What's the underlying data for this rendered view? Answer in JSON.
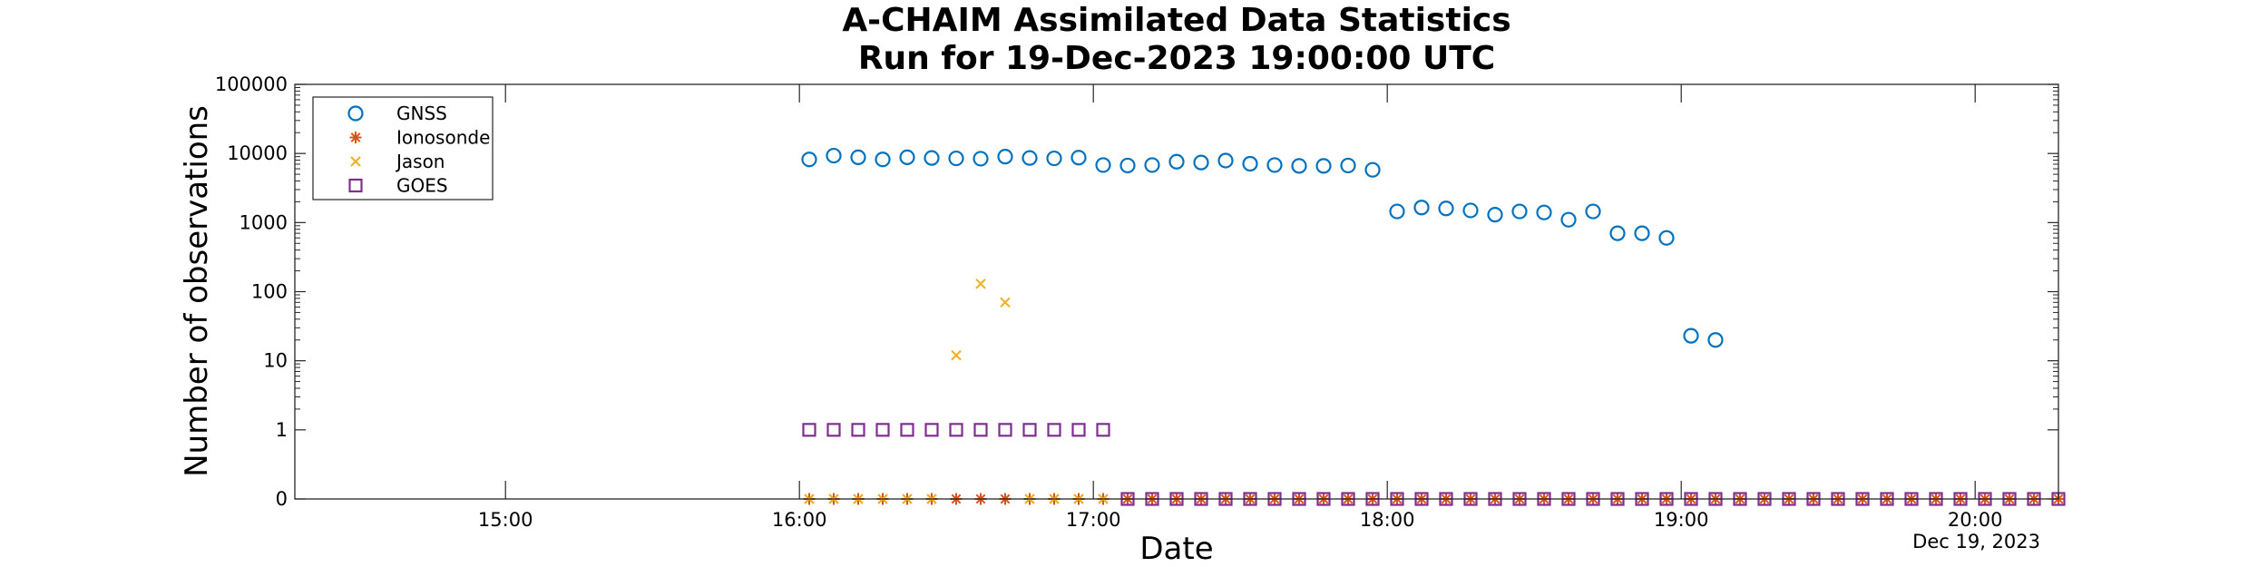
{
  "chart_data": {
    "type": "scatter",
    "title": "A-CHAIM Assimilated Data Statistics",
    "subtitle": "Run for 19-Dec-2023 19:00:00 UTC",
    "xlabel": "Date",
    "ylabel": "Number of observations",
    "x_ticks": [
      "15:00",
      "16:00",
      "17:00",
      "18:00",
      "19:00",
      "20:00"
    ],
    "y_ticks": [
      "0",
      "1",
      "10",
      "100",
      "1000",
      "10000",
      "100000"
    ],
    "x_range": [
      "14:17",
      "20:17"
    ],
    "y_range": [
      0,
      100000
    ],
    "y_scale": "log (0 plotted at bottom)",
    "date_label": "Dec 19, 2023",
    "legend_position": "top-left",
    "series": [
      {
        "name": "GNSS",
        "marker": "circle",
        "color": "#0072BD",
        "points": [
          [
            "16:02",
            8200
          ],
          [
            "16:07",
            9300
          ],
          [
            "16:12",
            8800
          ],
          [
            "16:17",
            8200
          ],
          [
            "16:22",
            8800
          ],
          [
            "16:27",
            8600
          ],
          [
            "16:32",
            8500
          ],
          [
            "16:37",
            8400
          ],
          [
            "16:42",
            9000
          ],
          [
            "16:47",
            8600
          ],
          [
            "16:52",
            8500
          ],
          [
            "16:57",
            8700
          ],
          [
            "17:02",
            6800
          ],
          [
            "17:07",
            6700
          ],
          [
            "17:12",
            6800
          ],
          [
            "17:17",
            7600
          ],
          [
            "17:22",
            7400
          ],
          [
            "17:27",
            7900
          ],
          [
            "17:32",
            7100
          ],
          [
            "17:37",
            6800
          ],
          [
            "17:42",
            6600
          ],
          [
            "17:47",
            6600
          ],
          [
            "17:52",
            6700
          ],
          [
            "17:57",
            5800
          ],
          [
            "18:02",
            1450
          ],
          [
            "18:07",
            1650
          ],
          [
            "18:12",
            1600
          ],
          [
            "18:17",
            1500
          ],
          [
            "18:22",
            1300
          ],
          [
            "18:27",
            1450
          ],
          [
            "18:32",
            1400
          ],
          [
            "18:37",
            1100
          ],
          [
            "18:42",
            1450
          ],
          [
            "18:47",
            700
          ],
          [
            "18:52",
            700
          ],
          [
            "18:57",
            600
          ],
          [
            "19:02",
            23
          ],
          [
            "19:07",
            20
          ]
        ]
      },
      {
        "name": "Ionosonde",
        "marker": "asterisk",
        "color": "#D95319",
        "points": [
          [
            "16:02",
            0
          ],
          [
            "16:07",
            0
          ],
          [
            "16:12",
            0
          ],
          [
            "16:17",
            0
          ],
          [
            "16:22",
            0
          ],
          [
            "16:27",
            0
          ],
          [
            "16:32",
            0
          ],
          [
            "16:37",
            0
          ],
          [
            "16:42",
            0
          ],
          [
            "16:47",
            0
          ],
          [
            "16:52",
            0
          ],
          [
            "16:57",
            0
          ],
          [
            "17:02",
            0
          ],
          [
            "17:07",
            0
          ],
          [
            "17:12",
            0
          ],
          [
            "17:17",
            0
          ],
          [
            "17:22",
            0
          ],
          [
            "17:27",
            0
          ],
          [
            "17:32",
            0
          ],
          [
            "17:37",
            0
          ],
          [
            "17:42",
            0
          ],
          [
            "17:47",
            0
          ],
          [
            "17:52",
            0
          ],
          [
            "17:57",
            0
          ],
          [
            "18:02",
            0
          ],
          [
            "18:07",
            0
          ],
          [
            "18:12",
            0
          ],
          [
            "18:17",
            0
          ],
          [
            "18:22",
            0
          ],
          [
            "18:27",
            0
          ],
          [
            "18:32",
            0
          ],
          [
            "18:37",
            0
          ],
          [
            "18:42",
            0
          ],
          [
            "18:47",
            0
          ],
          [
            "18:52",
            0
          ],
          [
            "18:57",
            0
          ],
          [
            "19:02",
            0
          ],
          [
            "19:07",
            0
          ],
          [
            "19:12",
            0
          ],
          [
            "19:17",
            0
          ],
          [
            "19:22",
            0
          ],
          [
            "19:27",
            0
          ],
          [
            "19:32",
            0
          ],
          [
            "19:37",
            0
          ],
          [
            "19:42",
            0
          ],
          [
            "19:47",
            0
          ],
          [
            "19:52",
            0
          ],
          [
            "19:57",
            0
          ],
          [
            "20:02",
            0
          ],
          [
            "20:07",
            0
          ],
          [
            "20:12",
            0
          ],
          [
            "20:17",
            0
          ]
        ]
      },
      {
        "name": "Jason",
        "marker": "x",
        "color": "#EDB120",
        "points": [
          [
            "16:02",
            0
          ],
          [
            "16:07",
            0
          ],
          [
            "16:12",
            0
          ],
          [
            "16:17",
            0
          ],
          [
            "16:22",
            0
          ],
          [
            "16:27",
            0
          ],
          [
            "16:32",
            12
          ],
          [
            "16:37",
            130
          ],
          [
            "16:42",
            70
          ],
          [
            "16:47",
            0
          ],
          [
            "16:52",
            0
          ],
          [
            "16:57",
            0
          ],
          [
            "17:02",
            0
          ]
        ]
      },
      {
        "name": "GOES",
        "marker": "square",
        "color": "#7E2F8E",
        "points": [
          [
            "16:02",
            1
          ],
          [
            "16:07",
            1
          ],
          [
            "16:12",
            1
          ],
          [
            "16:17",
            1
          ],
          [
            "16:22",
            1
          ],
          [
            "16:27",
            1
          ],
          [
            "16:32",
            1
          ],
          [
            "16:37",
            1
          ],
          [
            "16:42",
            1
          ],
          [
            "16:47",
            1
          ],
          [
            "16:52",
            1
          ],
          [
            "16:57",
            1
          ],
          [
            "17:02",
            1
          ],
          [
            "17:07",
            0
          ],
          [
            "17:12",
            0
          ],
          [
            "17:17",
            0
          ],
          [
            "17:22",
            0
          ],
          [
            "17:27",
            0
          ],
          [
            "17:32",
            0
          ],
          [
            "17:37",
            0
          ],
          [
            "17:42",
            0
          ],
          [
            "17:47",
            0
          ],
          [
            "17:52",
            0
          ],
          [
            "17:57",
            0
          ],
          [
            "18:02",
            0
          ],
          [
            "18:07",
            0
          ],
          [
            "18:12",
            0
          ],
          [
            "18:17",
            0
          ],
          [
            "18:22",
            0
          ],
          [
            "18:27",
            0
          ],
          [
            "18:32",
            0
          ],
          [
            "18:37",
            0
          ],
          [
            "18:42",
            0
          ],
          [
            "18:47",
            0
          ],
          [
            "18:52",
            0
          ],
          [
            "18:57",
            0
          ],
          [
            "19:02",
            0
          ],
          [
            "19:07",
            0
          ],
          [
            "19:12",
            0
          ],
          [
            "19:17",
            0
          ],
          [
            "19:22",
            0
          ],
          [
            "19:27",
            0
          ],
          [
            "19:32",
            0
          ],
          [
            "19:37",
            0
          ],
          [
            "19:42",
            0
          ],
          [
            "19:47",
            0
          ],
          [
            "19:52",
            0
          ],
          [
            "19:57",
            0
          ],
          [
            "20:02",
            0
          ],
          [
            "20:07",
            0
          ],
          [
            "20:12",
            0
          ],
          [
            "20:17",
            0
          ]
        ]
      }
    ]
  }
}
